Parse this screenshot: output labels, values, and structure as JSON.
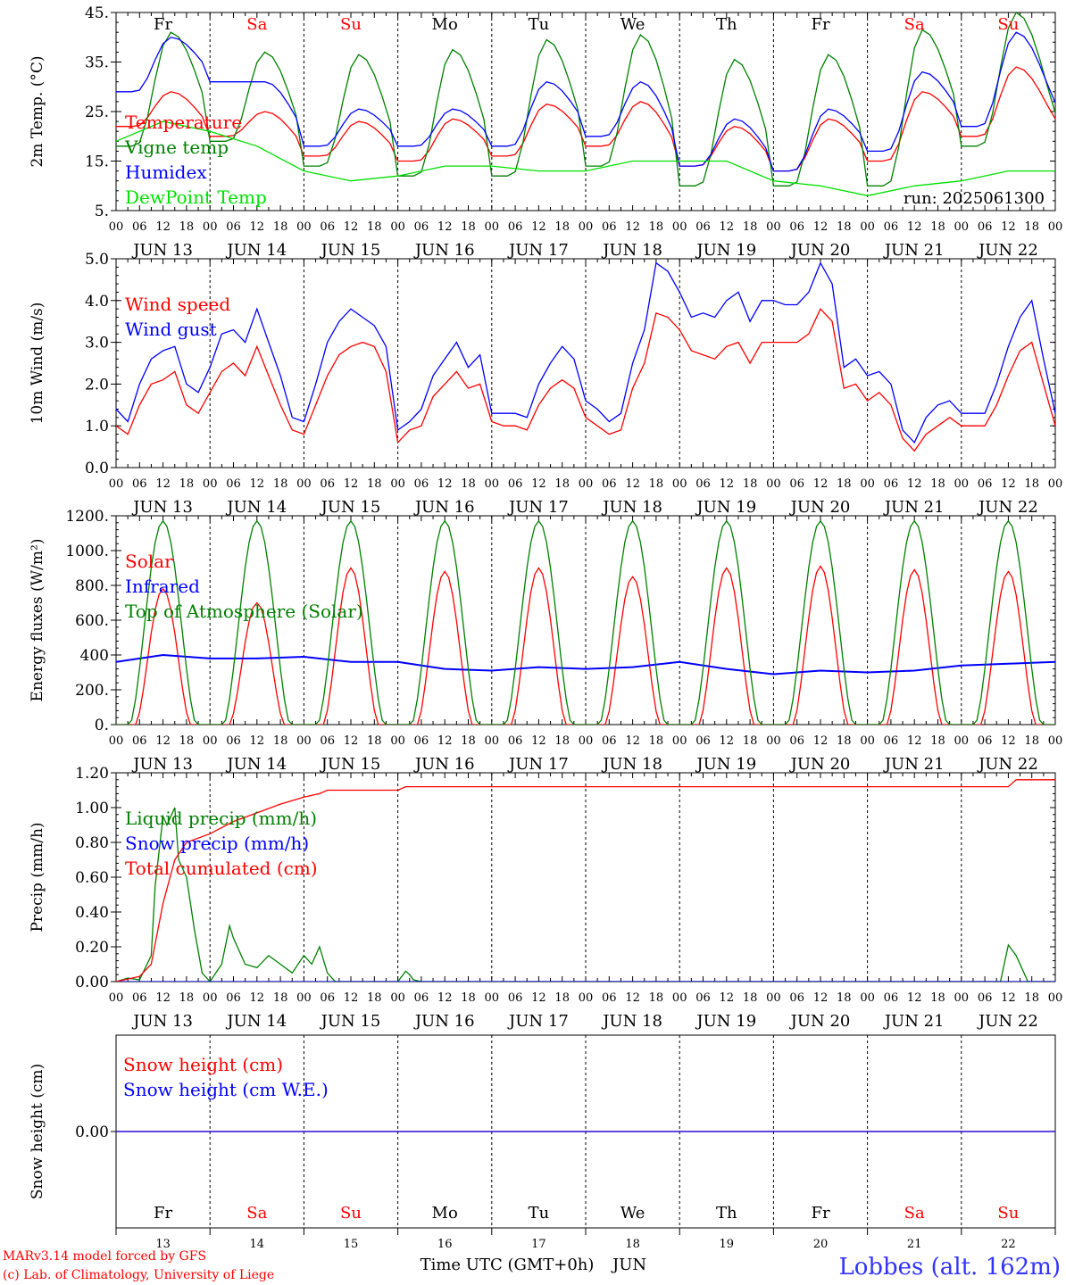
{
  "footer": {
    "model_line": "MARv3.14 model forced by GFS",
    "credit_line": "(c) Lab. of Climatology, University of Liege",
    "xlabel": "Time UTC (GMT+0h)",
    "month": "JUN",
    "station": "Lobbes (alt. 162m)"
  },
  "colors": {
    "red": "#ff0000",
    "blue": "#0000ff",
    "green": "#008000",
    "lime": "#00e000",
    "grid": "#000000"
  },
  "chart_data": {
    "shared_x": {
      "type": "time",
      "start": "2025-06-13 00",
      "days": [
        "13",
        "14",
        "15",
        "16",
        "17",
        "18",
        "19",
        "20",
        "21",
        "22"
      ],
      "day_labels": [
        "JUN 13",
        "JUN 14",
        "JUN 15",
        "JUN 16",
        "JUN 17",
        "JUN 18",
        "JUN 19",
        "JUN 20",
        "JUN 21",
        "JUN 22"
      ],
      "hour_ticks": [
        "00",
        "06",
        "12",
        "18"
      ],
      "end_tick": "00",
      "weekdays": [
        {
          "label": "Fr",
          "weekend": false
        },
        {
          "label": "Sa",
          "weekend": true
        },
        {
          "label": "Su",
          "weekend": true
        },
        {
          "label": "Mo",
          "weekend": false
        },
        {
          "label": "Tu",
          "weekend": false
        },
        {
          "label": "We",
          "weekend": false
        },
        {
          "label": "Th",
          "weekend": false
        },
        {
          "label": "Fr",
          "weekend": false
        },
        {
          "label": "Sa",
          "weekend": true
        },
        {
          "label": "Su",
          "weekend": true
        }
      ]
    },
    "panels": [
      {
        "id": "temperature",
        "type": "line",
        "ylabel": "2m Temp. (°C)",
        "ylim": [
          5,
          45
        ],
        "yticks": [
          {
            "v": 5,
            "t": "5."
          },
          {
            "v": 15,
            "t": "15."
          },
          {
            "v": 25,
            "t": "25."
          },
          {
            "v": 35,
            "t": "35."
          },
          {
            "v": 45,
            "t": "45."
          }
        ],
        "annotation": "run: 2025061300",
        "series": [
          {
            "name": "Temperature",
            "color": "#ff0000",
            "kind": "diurnal",
            "mins": [
              22,
              20,
              16,
              15,
              16,
              18,
              14,
              13,
              15,
              20
            ],
            "maxs": [
              29,
              25,
              23,
              23.5,
              26.5,
              27,
              22,
              23.5,
              29,
              34
            ]
          },
          {
            "name": "Vigne temp",
            "color": "#008000",
            "kind": "diurnal",
            "mins": [
              18,
              19,
              14,
              12,
              12,
              14,
              10,
              10,
              10,
              18
            ],
            "maxs": [
              41,
              37,
              36.5,
              37.5,
              39.5,
              40.5,
              35.5,
              36.5,
              41.5,
              45
            ]
          },
          {
            "name": "Humidex",
            "color": "#0000ff",
            "kind": "diurnal",
            "mins": [
              29,
              31,
              18,
              18,
              18,
              20,
              14,
              13,
              17,
              22
            ],
            "maxs": [
              40,
              31,
              25.5,
              25.5,
              31,
              31,
              23.5,
              25.5,
              33,
              41
            ]
          },
          {
            "name": "DewPoint Temp",
            "color": "#00e000",
            "kind": "points",
            "x": [
              0,
              12,
              24,
              36,
              48,
              60,
              72,
              84,
              96,
              108,
              120,
              132,
              144,
              156,
              168,
              180,
              192,
              204,
              216,
              228,
              240
            ],
            "y": [
              19,
              23,
              21,
              18,
              13,
              11,
              12,
              14,
              14,
              13,
              13,
              15,
              15,
              15,
              11,
              10,
              8,
              10,
              11,
              13,
              13
            ]
          }
        ]
      },
      {
        "id": "wind",
        "type": "line",
        "ylabel": "10m Wind (m/s)",
        "ylim": [
          0,
          5
        ],
        "yticks": [
          {
            "v": 0,
            "t": "0.0"
          },
          {
            "v": 1,
            "t": "1.0"
          },
          {
            "v": 2,
            "t": "2.0"
          },
          {
            "v": 3,
            "t": "3.0"
          },
          {
            "v": 4,
            "t": "4.0"
          },
          {
            "v": 5,
            "t": "5.0"
          }
        ],
        "series": [
          {
            "name": "Wind speed",
            "color": "#ff0000",
            "kind": "points",
            "x": [
              0,
              3,
              6,
              9,
              12,
              15,
              18,
              21,
              24,
              27,
              30,
              33,
              36,
              39,
              42,
              45,
              48,
              51,
              54,
              57,
              60,
              63,
              66,
              69,
              72,
              75,
              78,
              81,
              84,
              87,
              90,
              93,
              96,
              99,
              102,
              105,
              108,
              111,
              114,
              117,
              120,
              123,
              126,
              129,
              132,
              135,
              138,
              141,
              144,
              147,
              150,
              153,
              156,
              159,
              162,
              165,
              168,
              171,
              174,
              177,
              180,
              183,
              186,
              189,
              192,
              195,
              198,
              201,
              204,
              207,
              210,
              213,
              216,
              219,
              222,
              225,
              228,
              231,
              234,
              237,
              240
            ],
            "y": [
              1.0,
              0.8,
              1.5,
              2.0,
              2.1,
              2.3,
              1.5,
              1.3,
              1.8,
              2.3,
              2.5,
              2.2,
              2.9,
              2.2,
              1.5,
              0.9,
              0.8,
              1.5,
              2.2,
              2.7,
              2.9,
              3.0,
              2.9,
              2.3,
              0.6,
              0.9,
              1.0,
              1.7,
              2.0,
              2.3,
              1.9,
              2.0,
              1.1,
              1.0,
              1.0,
              0.9,
              1.5,
              1.9,
              2.1,
              1.9,
              1.2,
              1.0,
              0.8,
              0.9,
              1.9,
              2.5,
              3.7,
              3.6,
              3.3,
              2.8,
              2.7,
              2.6,
              2.9,
              3.0,
              2.5,
              3.0,
              3.0,
              3.0,
              3.0,
              3.2,
              3.8,
              3.5,
              1.9,
              2.0,
              1.6,
              1.8,
              1.5,
              0.7,
              0.4,
              0.8,
              1.0,
              1.2,
              1.0,
              1.0,
              1.0,
              1.5,
              2.2,
              2.8,
              3.0,
              2.0,
              1.0
            ]
          },
          {
            "name": "Wind gust",
            "color": "#0000ff",
            "kind": "points",
            "x": [
              0,
              3,
              6,
              9,
              12,
              15,
              18,
              21,
              24,
              27,
              30,
              33,
              36,
              39,
              42,
              45,
              48,
              51,
              54,
              57,
              60,
              63,
              66,
              69,
              72,
              75,
              78,
              81,
              84,
              87,
              90,
              93,
              96,
              99,
              102,
              105,
              108,
              111,
              114,
              117,
              120,
              123,
              126,
              129,
              132,
              135,
              138,
              141,
              144,
              147,
              150,
              153,
              156,
              159,
              162,
              165,
              168,
              171,
              174,
              177,
              180,
              183,
              186,
              189,
              192,
              195,
              198,
              201,
              204,
              207,
              210,
              213,
              216,
              219,
              222,
              225,
              228,
              231,
              234,
              237,
              240
            ],
            "y": [
              1.4,
              1.1,
              2.0,
              2.6,
              2.8,
              2.9,
              2.0,
              1.8,
              2.4,
              3.2,
              3.3,
              3.0,
              3.8,
              3.0,
              2.2,
              1.2,
              1.1,
              2.0,
              3.0,
              3.5,
              3.8,
              3.6,
              3.4,
              2.9,
              0.9,
              1.1,
              1.4,
              2.2,
              2.6,
              3.0,
              2.4,
              2.7,
              1.3,
              1.3,
              1.3,
              1.2,
              2.0,
              2.5,
              2.9,
              2.6,
              1.6,
              1.4,
              1.1,
              1.3,
              2.5,
              3.3,
              4.9,
              4.7,
              4.2,
              3.6,
              3.7,
              3.6,
              4.0,
              4.2,
              3.5,
              4.0,
              4.0,
              3.9,
              3.9,
              4.2,
              4.9,
              4.4,
              2.4,
              2.6,
              2.2,
              2.3,
              2.0,
              0.9,
              0.6,
              1.2,
              1.5,
              1.6,
              1.3,
              1.3,
              1.3,
              2.0,
              2.9,
              3.6,
              4.0,
              2.6,
              1.3
            ]
          }
        ]
      },
      {
        "id": "energy",
        "type": "line",
        "ylabel": "Energy fluxes (W/m²)",
        "ylim": [
          0,
          1200
        ],
        "yticks": [
          {
            "v": 0,
            "t": "0."
          },
          {
            "v": 200,
            "t": "200."
          },
          {
            "v": 400,
            "t": "400"
          },
          {
            "v": 600,
            "t": "600."
          },
          {
            "v": 800,
            "t": "800."
          },
          {
            "v": 1000,
            "t": "1000."
          },
          {
            "v": 1200,
            "t": "1200."
          }
        ],
        "series": [
          {
            "name": "Solar",
            "color": "#ff0000",
            "kind": "solar",
            "peaks": [
              780,
              700,
              900,
              880,
              900,
              850,
              900,
              910,
              890,
              880
            ]
          },
          {
            "name": "Infrared",
            "color": "#0000ff",
            "kind": "points",
            "x": [
              0,
              12,
              24,
              36,
              48,
              60,
              72,
              84,
              96,
              108,
              120,
              132,
              144,
              156,
              168,
              180,
              192,
              204,
              216,
              228,
              240
            ],
            "y": [
              360,
              400,
              380,
              380,
              390,
              360,
              360,
              320,
              310,
              330,
              320,
              330,
              360,
              320,
              290,
              310,
              300,
              310,
              340,
              350,
              360
            ]
          },
          {
            "name": "Top of Atmosphere (Solar)",
            "color": "#008000",
            "kind": "toa",
            "peak": 1170
          }
        ]
      },
      {
        "id": "precip",
        "type": "line",
        "ylabel": "Precip (mm/h)",
        "ylim": [
          0,
          1.2
        ],
        "yticks": [
          {
            "v": 0,
            "t": "0.00"
          },
          {
            "v": 0.2,
            "t": "0.20"
          },
          {
            "v": 0.4,
            "t": "0.40"
          },
          {
            "v": 0.6,
            "t": "0.60"
          },
          {
            "v": 0.8,
            "t": "0.80"
          },
          {
            "v": 1.0,
            "t": "1.00"
          },
          {
            "v": 1.2,
            "t": "1.20"
          }
        ],
        "series": [
          {
            "name": "Liquid precip (mm/h)",
            "color": "#008000",
            "kind": "points",
            "x": [
              0,
              3,
              6,
              9,
              10,
              12,
              13,
              15,
              16,
              18,
              20,
              22,
              24,
              27,
              29,
              30,
              33,
              36,
              39,
              42,
              45,
              48,
              50,
              52,
              54,
              56,
              58,
              60,
              72,
              74,
              75,
              76,
              78,
              216,
              226,
              228,
              230,
              233,
              240
            ],
            "y": [
              0,
              0.02,
              0.01,
              0.15,
              0.55,
              0.95,
              0.9,
              1.0,
              0.7,
              0.6,
              0.3,
              0.05,
              0,
              0.1,
              0.32,
              0.25,
              0.1,
              0.08,
              0.15,
              0.1,
              0.05,
              0.15,
              0.1,
              0.2,
              0.05,
              0,
              0,
              0,
              0,
              0.06,
              0.04,
              0.01,
              0,
              0,
              0,
              0.21,
              0.15,
              0,
              0
            ]
          },
          {
            "name": "Snow precip (mm/h)",
            "color": "#0000ff",
            "kind": "points",
            "x": [
              0,
              240
            ],
            "y": [
              0,
              0
            ]
          },
          {
            "name": "Total cumulated (cm)",
            "color": "#ff0000",
            "kind": "points",
            "x": [
              0,
              6,
              9,
              12,
              15,
              18,
              24,
              30,
              36,
              42,
              48,
              52,
              54,
              60,
              72,
              74,
              216,
              228,
              230,
              240
            ],
            "y": [
              0,
              0.03,
              0.1,
              0.45,
              0.7,
              0.8,
              0.85,
              0.92,
              0.97,
              1.02,
              1.06,
              1.08,
              1.1,
              1.1,
              1.1,
              1.12,
              1.12,
              1.12,
              1.16,
              1.16
            ]
          }
        ]
      },
      {
        "id": "snow",
        "type": "line",
        "ylabel": "Snow height (cm)",
        "ylim": [
          -1,
          1
        ],
        "yticks": [
          {
            "v": 0,
            "t": "0.00"
          }
        ],
        "series": [
          {
            "name": "Snow height (cm)",
            "color": "#ff0000",
            "kind": "points",
            "x": [
              0,
              240
            ],
            "y": [
              0,
              0
            ]
          },
          {
            "name": "Snow height (cm W.E.)",
            "color": "#0000ff",
            "kind": "points",
            "x": [
              0,
              240
            ],
            "y": [
              0,
              0
            ]
          }
        ]
      }
    ]
  }
}
